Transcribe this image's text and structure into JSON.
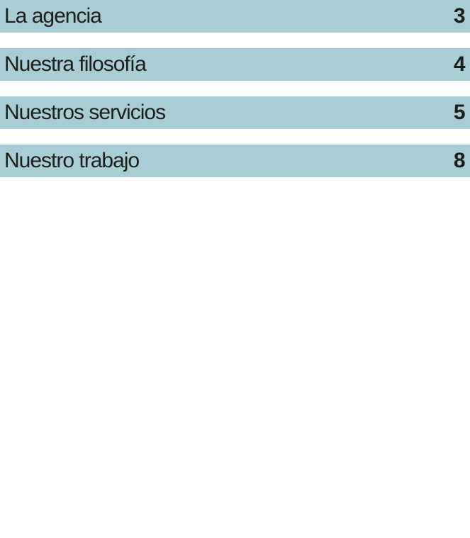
{
  "page": {
    "background_color": "#ffffff"
  },
  "toc": {
    "bar_color": "#a8cdd5",
    "text_color": "#1d1d1b",
    "items": [
      {
        "label": "La agencia",
        "page": "3"
      },
      {
        "label": "Nuestra filosofía",
        "page": "4"
      },
      {
        "label": "Nuestros servicios",
        "page": "5"
      },
      {
        "label": "Nuestro trabajo",
        "page": "8"
      }
    ]
  }
}
